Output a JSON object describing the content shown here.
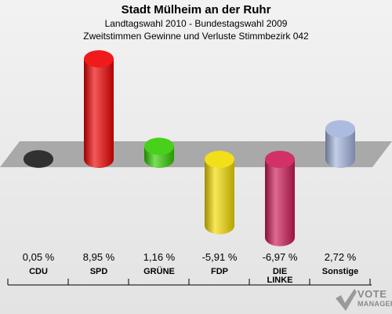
{
  "header": {
    "title": "Stadt Mülheim an der Ruhr",
    "subtitle": "Landtagswahl 2010 - Bundestagswahl 2009",
    "subtitle2": "Zweitstimmen Gewinne und Verluste Stimmbezirk 042"
  },
  "chart_data": {
    "type": "bar",
    "categories": [
      "CDU",
      "SPD",
      "GRÜNE",
      "FDP",
      "DIE LINKE",
      "Sonstige"
    ],
    "values": [
      0.05,
      8.95,
      1.16,
      -5.91,
      -6.97,
      2.72
    ],
    "value_labels": [
      "0,05 %",
      "8,95 %",
      "1,16 %",
      "-5,91 %",
      "-6,97 %",
      "2,72 %"
    ],
    "colors": [
      "#1a1a1a",
      "#ee0000",
      "#33cc00",
      "#f2da00",
      "#cc1a55",
      "#a3b4dd"
    ],
    "ylim": [
      -6.97,
      8.95
    ],
    "grid": false,
    "legend": "none"
  },
  "logo": {
    "word1": "VOTE",
    "word2": "MANAGER"
  }
}
